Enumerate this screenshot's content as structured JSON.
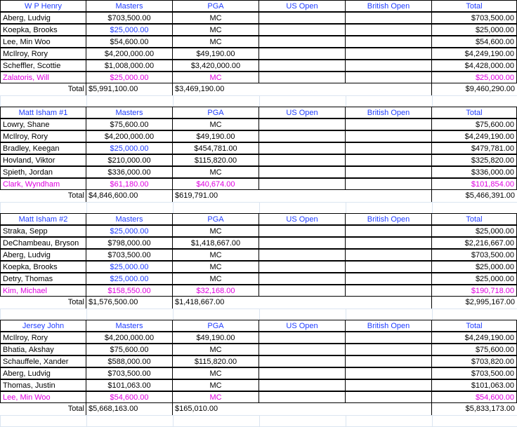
{
  "colors": {
    "blue": "#1f3dff",
    "magenta": "#e000e0",
    "black": "#000000"
  },
  "columns": [
    "Masters",
    "PGA",
    "US Open",
    "British Open",
    "Total"
  ],
  "teams": [
    {
      "name": "W P Henry",
      "rows": [
        {
          "player": "Aberg, Ludvig",
          "masters": "$703,500.00",
          "pga": "MC",
          "us": "",
          "british": "",
          "total": "$703,500.00",
          "masters_color": "black",
          "row_color": "black"
        },
        {
          "player": "Koepka, Brooks",
          "masters": "$25,000.00",
          "pga": "MC",
          "us": "",
          "british": "",
          "total": "$25,000.00",
          "masters_color": "blue",
          "row_color": "black"
        },
        {
          "player": "Lee, Min Woo",
          "masters": "$54,600.00",
          "pga": "MC",
          "us": "",
          "british": "",
          "total": "$54,600.00",
          "masters_color": "black",
          "row_color": "black"
        },
        {
          "player": "McIlroy, Rory",
          "masters": "$4,200,000.00",
          "pga": "$49,190.00",
          "us": "",
          "british": "",
          "total": "$4,249,190.00",
          "masters_color": "black",
          "row_color": "black"
        },
        {
          "player": "Scheffler, Scottie",
          "masters": "$1,008,000.00",
          "pga": "$3,420,000.00",
          "us": "",
          "british": "",
          "total": "$4,428,000.00",
          "masters_color": "black",
          "row_color": "black"
        },
        {
          "player": "Zalatoris, Will",
          "masters": "$25,000.00",
          "pga": "MC",
          "us": "",
          "british": "",
          "total": "$25,000.00",
          "masters_color": "magenta",
          "row_color": "magenta"
        }
      ],
      "total_label": "Total",
      "total_masters": "$5,991,100.00",
      "total_pga": "$3,469,190.00",
      "total_total": "$9,460,290.00"
    },
    {
      "name": "Matt Isham #1",
      "rows": [
        {
          "player": "Lowry, Shane",
          "masters": "$75,600.00",
          "pga": "MC",
          "us": "",
          "british": "",
          "total": "$75,600.00",
          "masters_color": "black",
          "row_color": "black"
        },
        {
          "player": "McIlroy, Rory",
          "masters": "$4,200,000.00",
          "pga": "$49,190.00",
          "us": "",
          "british": "",
          "total": "$4,249,190.00",
          "masters_color": "black",
          "row_color": "black"
        },
        {
          "player": "Bradley, Keegan",
          "masters": "$25,000.00",
          "pga": "$454,781.00",
          "us": "",
          "british": "",
          "total": "$479,781.00",
          "masters_color": "blue",
          "row_color": "black"
        },
        {
          "player": "Hovland, Viktor",
          "masters": "$210,000.00",
          "pga": "$115,820.00",
          "us": "",
          "british": "",
          "total": "$325,820.00",
          "masters_color": "black",
          "row_color": "black"
        },
        {
          "player": "Spieth, Jordan",
          "masters": "$336,000.00",
          "pga": "MC",
          "us": "",
          "british": "",
          "total": "$336,000.00",
          "masters_color": "black",
          "row_color": "black"
        },
        {
          "player": "Clark, Wyndham",
          "masters": "$61,180.00",
          "pga": "$40,674.00",
          "us": "",
          "british": "",
          "total": "$101,854.00",
          "masters_color": "magenta",
          "row_color": "magenta"
        }
      ],
      "total_label": "Total",
      "total_masters": "$4,846,600.00",
      "total_pga": "$619,791.00",
      "total_total": "$5,466,391.00"
    },
    {
      "name": "Matt Isham #2",
      "rows": [
        {
          "player": "Straka, Sepp",
          "masters": "$25,000.00",
          "pga": "MC",
          "us": "",
          "british": "",
          "total": "$25,000.00",
          "masters_color": "blue",
          "row_color": "black"
        },
        {
          "player": "DeChambeau, Bryson",
          "masters": "$798,000.00",
          "pga": "$1,418,667.00",
          "us": "",
          "british": "",
          "total": "$2,216,667.00",
          "masters_color": "black",
          "row_color": "black"
        },
        {
          "player": "Aberg, Ludvig",
          "masters": "$703,500.00",
          "pga": "MC",
          "us": "",
          "british": "",
          "total": "$703,500.00",
          "masters_color": "black",
          "row_color": "black"
        },
        {
          "player": "Koepka, Brooks",
          "masters": "$25,000.00",
          "pga": "MC",
          "us": "",
          "british": "",
          "total": "$25,000.00",
          "masters_color": "blue",
          "row_color": "black"
        },
        {
          "player": "Detry, Thomas",
          "masters": "$25,000.00",
          "pga": "MC",
          "us": "",
          "british": "",
          "total": "$25,000.00",
          "masters_color": "blue",
          "row_color": "black"
        },
        {
          "player": "Kim, Michael",
          "masters": "$158,550.00",
          "pga": "$32,168.00",
          "us": "",
          "british": "",
          "total": "$190,718.00",
          "masters_color": "magenta",
          "row_color": "magenta"
        }
      ],
      "total_label": "Total",
      "total_masters": "$1,576,500.00",
      "total_pga": "$1,418,667.00",
      "total_total": "$2,995,167.00"
    },
    {
      "name": "Jersey John",
      "rows": [
        {
          "player": "McIlroy, Rory",
          "masters": "$4,200,000.00",
          "pga": "$49,190.00",
          "us": "",
          "british": "",
          "total": "$4,249,190.00",
          "masters_color": "black",
          "row_color": "black"
        },
        {
          "player": "Bhatia, Akshay",
          "masters": "$75,600.00",
          "pga": "MC",
          "us": "",
          "british": "",
          "total": "$75,600.00",
          "masters_color": "black",
          "row_color": "black"
        },
        {
          "player": "Schauffele, Xander",
          "masters": "$588,000.00",
          "pga": "$115,820.00",
          "us": "",
          "british": "",
          "total": "$703,820.00",
          "masters_color": "black",
          "row_color": "black"
        },
        {
          "player": "Aberg, Ludvig",
          "masters": "$703,500.00",
          "pga": "MC",
          "us": "",
          "british": "",
          "total": "$703,500.00",
          "masters_color": "black",
          "row_color": "black"
        },
        {
          "player": "Thomas, Justin",
          "masters": "$101,063.00",
          "pga": "MC",
          "us": "",
          "british": "",
          "total": "$101,063.00",
          "masters_color": "black",
          "row_color": "black"
        },
        {
          "player": "Lee, Min Woo",
          "masters": "$54,600.00",
          "pga": "MC",
          "us": "",
          "british": "",
          "total": "$54,600.00",
          "masters_color": "magenta",
          "row_color": "magenta"
        }
      ],
      "total_label": "Total",
      "total_masters": "$5,668,163.00",
      "total_pga": "$165,010.00",
      "total_total": "$5,833,173.00"
    }
  ]
}
